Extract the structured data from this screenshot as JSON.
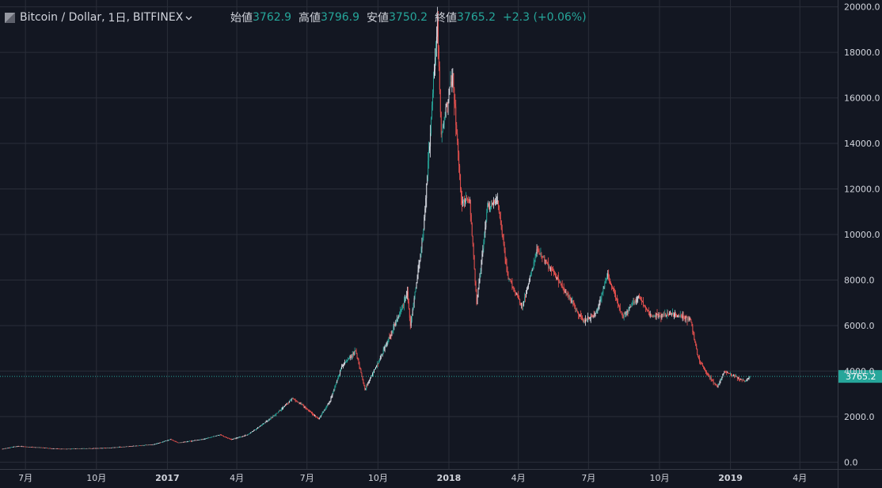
{
  "header": {
    "symbol": "Bitcoin / Dollar",
    "interval": "1日",
    "exchange": "BITFINEX",
    "chevron": "chevron-down-icon",
    "open_label": "始値",
    "open_value": "3762.9",
    "high_label": "高値",
    "high_value": "3796.9",
    "low_label": "安値",
    "low_value": "3750.2",
    "close_label": "終値",
    "close_value": "3765.2",
    "change": "+2.3 (+0.06%)"
  },
  "colors": {
    "background": "#131722",
    "grid": "#2a2e39",
    "text": "#d1d4dc",
    "up": "#26a69a",
    "down": "#ef5350",
    "candle_light": "#e0e3eb",
    "price_line": "#26a69a"
  },
  "chart_data": {
    "type": "line",
    "title": "Bitcoin / Dollar, 1日, BITFINEX",
    "style": "candlestick",
    "current_price": 3765.2,
    "current_price_label": "3765.2",
    "ylim": [
      -300,
      20300
    ],
    "yticks": [
      0,
      2000,
      4000,
      6000,
      8000,
      10000,
      12000,
      14000,
      16000,
      18000,
      20000
    ],
    "ytick_labels": [
      "0.0",
      "2000.0",
      "4000.0",
      "6000.0",
      "8000.0",
      "10000.0",
      "12000.0",
      "14000.0",
      "16000.0",
      "18000.0",
      "20000.0"
    ],
    "x_range": [
      "2016-05-29",
      "2019-05-20"
    ],
    "xticks": [
      "2016-07-01",
      "2016-10-01",
      "2017-01-01",
      "2017-04-01",
      "2017-07-01",
      "2017-10-01",
      "2018-01-01",
      "2018-04-01",
      "2018-07-01",
      "2018-10-01",
      "2019-01-01",
      "2019-04-01"
    ],
    "xtick_labels": [
      "7月",
      "10月",
      "2017",
      "4月",
      "7月",
      "10月",
      "2018",
      "4月",
      "7月",
      "10月",
      "2019",
      "4月"
    ],
    "xtick_bold": [
      false,
      false,
      true,
      false,
      false,
      false,
      true,
      false,
      false,
      false,
      true,
      false
    ],
    "series": [
      {
        "x": [
          "2016-06-01",
          "2016-06-20",
          "2016-07-15",
          "2016-08-15",
          "2016-09-15",
          "2016-10-15",
          "2016-11-15",
          "2016-12-15",
          "2017-01-05",
          "2017-01-15",
          "2017-02-15",
          "2017-03-10",
          "2017-03-25",
          "2017-04-15",
          "2017-05-10",
          "2017-05-25",
          "2017-06-12",
          "2017-06-25",
          "2017-07-16",
          "2017-07-31",
          "2017-08-15",
          "2017-09-02",
          "2017-09-14",
          "2017-09-30",
          "2017-10-20",
          "2017-11-08",
          "2017-11-12",
          "2017-11-28",
          "2017-12-07",
          "2017-12-17",
          "2017-12-22",
          "2017-12-28",
          "2018-01-06",
          "2018-01-17",
          "2018-01-28",
          "2018-02-06",
          "2018-02-20",
          "2018-03-05",
          "2018-03-18",
          "2018-04-06",
          "2018-04-25",
          "2018-05-15",
          "2018-06-01",
          "2018-06-24",
          "2018-07-10",
          "2018-07-26",
          "2018-08-14",
          "2018-09-04",
          "2018-09-20",
          "2018-10-15",
          "2018-11-10",
          "2018-11-20",
          "2018-12-01",
          "2018-12-15",
          "2018-12-24",
          "2019-01-05",
          "2019-01-20",
          "2019-01-26"
        ],
        "values": [
          580,
          700,
          650,
          580,
          600,
          620,
          700,
          780,
          1000,
          850,
          1000,
          1200,
          1000,
          1200,
          1800,
          2200,
          2800,
          2500,
          1900,
          2700,
          4200,
          4900,
          3200,
          4300,
          5800,
          7400,
          6000,
          9800,
          14000,
          19500,
          14200,
          15500,
          17000,
          11500,
          11500,
          7000,
          11200,
          11500,
          8200,
          6800,
          9300,
          8400,
          7500,
          6200,
          6500,
          8200,
          6400,
          7300,
          6400,
          6500,
          6300,
          4600,
          3900,
          3300,
          4000,
          3800,
          3550,
          3765
        ]
      }
    ]
  }
}
